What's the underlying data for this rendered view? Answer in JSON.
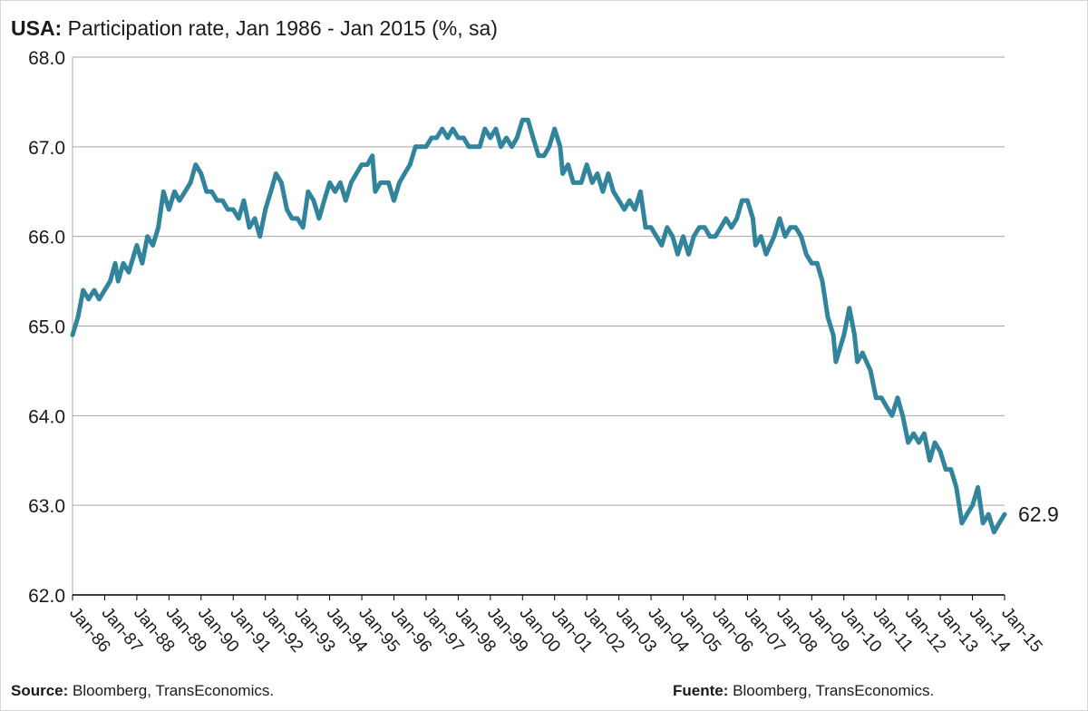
{
  "title": {
    "prefix": "USA:",
    "text": "Participation rate, Jan 1986 - Jan 2015 (%, sa)"
  },
  "footer": {
    "source_label": "Source:",
    "source_text": "Bloomberg, TransEconomics.",
    "fuente_label": "Fuente:",
    "fuente_text": "Bloomberg, TransEconomics."
  },
  "colors": {
    "line": "#31849b",
    "grid": "#a6a6a6",
    "axis": "#000000",
    "text": "#1a1a1a"
  },
  "chart_data": {
    "type": "line",
    "title": "USA: Participation rate, Jan 1986 - Jan 2015 (%, sa)",
    "xlabel": "",
    "ylabel": "",
    "ylim": [
      62.0,
      68.0
    ],
    "yticks": [
      62.0,
      63.0,
      64.0,
      65.0,
      66.0,
      67.0,
      68.0
    ],
    "ytick_labels": [
      "62.0",
      "63.0",
      "64.0",
      "65.0",
      "66.0",
      "67.0",
      "68.0"
    ],
    "xlim": [
      1986.0,
      2015.0
    ],
    "xtick_labels": [
      "Jan-86",
      "Jan-87",
      "Jan-88",
      "Jan-89",
      "Jan-90",
      "Jan-91",
      "Jan-92",
      "Jan-93",
      "Jan-94",
      "Jan-95",
      "Jan-96",
      "Jan-97",
      "Jan-98",
      "Jan-99",
      "Jan-00",
      "Jan-01",
      "Jan-02",
      "Jan-03",
      "Jan-04",
      "Jan-05",
      "Jan-06",
      "Jan-07",
      "Jan-08",
      "Jan-09",
      "Jan-10",
      "Jan-11",
      "Jan-12",
      "Jan-13",
      "Jan-14",
      "Jan-15"
    ],
    "grid": true,
    "last_value_label": "62.9",
    "series": [
      {
        "name": "",
        "points": [
          [
            1986.0,
            64.9
          ],
          [
            1986.17,
            65.1
          ],
          [
            1986.33,
            65.4
          ],
          [
            1986.5,
            65.3
          ],
          [
            1986.67,
            65.4
          ],
          [
            1986.83,
            65.3
          ],
          [
            1987.0,
            65.4
          ],
          [
            1987.17,
            65.5
          ],
          [
            1987.33,
            65.7
          ],
          [
            1987.42,
            65.5
          ],
          [
            1987.58,
            65.7
          ],
          [
            1987.75,
            65.6
          ],
          [
            1988.0,
            65.9
          ],
          [
            1988.17,
            65.7
          ],
          [
            1988.33,
            66.0
          ],
          [
            1988.5,
            65.9
          ],
          [
            1988.67,
            66.1
          ],
          [
            1988.83,
            66.5
          ],
          [
            1989.0,
            66.3
          ],
          [
            1989.17,
            66.5
          ],
          [
            1989.33,
            66.4
          ],
          [
            1989.5,
            66.5
          ],
          [
            1989.67,
            66.6
          ],
          [
            1989.83,
            66.8
          ],
          [
            1990.0,
            66.7
          ],
          [
            1990.17,
            66.5
          ],
          [
            1990.33,
            66.5
          ],
          [
            1990.5,
            66.4
          ],
          [
            1990.67,
            66.4
          ],
          [
            1990.83,
            66.3
          ],
          [
            1991.0,
            66.3
          ],
          [
            1991.17,
            66.2
          ],
          [
            1991.33,
            66.4
          ],
          [
            1991.5,
            66.1
          ],
          [
            1991.67,
            66.2
          ],
          [
            1991.83,
            66.0
          ],
          [
            1992.0,
            66.3
          ],
          [
            1992.17,
            66.5
          ],
          [
            1992.33,
            66.7
          ],
          [
            1992.5,
            66.6
          ],
          [
            1992.67,
            66.3
          ],
          [
            1992.83,
            66.2
          ],
          [
            1993.0,
            66.2
          ],
          [
            1993.17,
            66.1
          ],
          [
            1993.33,
            66.5
          ],
          [
            1993.5,
            66.4
          ],
          [
            1993.67,
            66.2
          ],
          [
            1993.83,
            66.4
          ],
          [
            1994.0,
            66.6
          ],
          [
            1994.17,
            66.5
          ],
          [
            1994.33,
            66.6
          ],
          [
            1994.5,
            66.4
          ],
          [
            1994.67,
            66.6
          ],
          [
            1994.83,
            66.7
          ],
          [
            1995.0,
            66.8
          ],
          [
            1995.17,
            66.8
          ],
          [
            1995.33,
            66.9
          ],
          [
            1995.42,
            66.5
          ],
          [
            1995.58,
            66.6
          ],
          [
            1995.83,
            66.6
          ],
          [
            1996.0,
            66.4
          ],
          [
            1996.17,
            66.6
          ],
          [
            1996.33,
            66.7
          ],
          [
            1996.5,
            66.8
          ],
          [
            1996.67,
            67.0
          ],
          [
            1996.83,
            67.0
          ],
          [
            1997.0,
            67.0
          ],
          [
            1997.17,
            67.1
          ],
          [
            1997.33,
            67.1
          ],
          [
            1997.5,
            67.2
          ],
          [
            1997.67,
            67.1
          ],
          [
            1997.83,
            67.2
          ],
          [
            1998.0,
            67.1
          ],
          [
            1998.17,
            67.1
          ],
          [
            1998.33,
            67.0
          ],
          [
            1998.5,
            67.0
          ],
          [
            1998.67,
            67.0
          ],
          [
            1998.83,
            67.2
          ],
          [
            1999.0,
            67.1
          ],
          [
            1999.17,
            67.2
          ],
          [
            1999.33,
            67.0
          ],
          [
            1999.5,
            67.1
          ],
          [
            1999.67,
            67.0
          ],
          [
            1999.83,
            67.1
          ],
          [
            2000.0,
            67.3
          ],
          [
            2000.17,
            67.3
          ],
          [
            2000.33,
            67.1
          ],
          [
            2000.5,
            66.9
          ],
          [
            2000.67,
            66.9
          ],
          [
            2000.83,
            67.0
          ],
          [
            2001.0,
            67.2
          ],
          [
            2001.17,
            67.0
          ],
          [
            2001.25,
            66.7
          ],
          [
            2001.42,
            66.8
          ],
          [
            2001.58,
            66.6
          ],
          [
            2001.83,
            66.6
          ],
          [
            2002.0,
            66.8
          ],
          [
            2002.17,
            66.6
          ],
          [
            2002.33,
            66.7
          ],
          [
            2002.5,
            66.5
          ],
          [
            2002.67,
            66.7
          ],
          [
            2002.83,
            66.5
          ],
          [
            2003.0,
            66.4
          ],
          [
            2003.17,
            66.3
          ],
          [
            2003.33,
            66.4
          ],
          [
            2003.5,
            66.3
          ],
          [
            2003.67,
            66.5
          ],
          [
            2003.83,
            66.1
          ],
          [
            2004.0,
            66.1
          ],
          [
            2004.17,
            66.0
          ],
          [
            2004.33,
            65.9
          ],
          [
            2004.5,
            66.1
          ],
          [
            2004.67,
            66.0
          ],
          [
            2004.83,
            65.8
          ],
          [
            2005.0,
            66.0
          ],
          [
            2005.17,
            65.8
          ],
          [
            2005.33,
            66.0
          ],
          [
            2005.5,
            66.1
          ],
          [
            2005.67,
            66.1
          ],
          [
            2005.83,
            66.0
          ],
          [
            2006.0,
            66.0
          ],
          [
            2006.17,
            66.1
          ],
          [
            2006.33,
            66.2
          ],
          [
            2006.5,
            66.1
          ],
          [
            2006.67,
            66.2
          ],
          [
            2006.83,
            66.4
          ],
          [
            2007.0,
            66.4
          ],
          [
            2007.17,
            66.2
          ],
          [
            2007.25,
            65.9
          ],
          [
            2007.42,
            66.0
          ],
          [
            2007.58,
            65.8
          ],
          [
            2007.83,
            66.0
          ],
          [
            2008.0,
            66.2
          ],
          [
            2008.17,
            66.0
          ],
          [
            2008.33,
            66.1
          ],
          [
            2008.5,
            66.1
          ],
          [
            2008.67,
            66.0
          ],
          [
            2008.83,
            65.8
          ],
          [
            2009.0,
            65.7
          ],
          [
            2009.17,
            65.7
          ],
          [
            2009.33,
            65.5
          ],
          [
            2009.5,
            65.1
          ],
          [
            2009.67,
            64.9
          ],
          [
            2009.75,
            64.6
          ],
          [
            2010.0,
            64.9
          ],
          [
            2010.17,
            65.2
          ],
          [
            2010.33,
            64.9
          ],
          [
            2010.42,
            64.6
          ],
          [
            2010.58,
            64.7
          ],
          [
            2010.83,
            64.5
          ],
          [
            2011.0,
            64.2
          ],
          [
            2011.17,
            64.2
          ],
          [
            2011.33,
            64.1
          ],
          [
            2011.5,
            64.0
          ],
          [
            2011.67,
            64.2
          ],
          [
            2011.83,
            64.0
          ],
          [
            2012.0,
            63.7
          ],
          [
            2012.17,
            63.8
          ],
          [
            2012.33,
            63.7
          ],
          [
            2012.5,
            63.8
          ],
          [
            2012.67,
            63.5
          ],
          [
            2012.83,
            63.7
          ],
          [
            2013.0,
            63.6
          ],
          [
            2013.17,
            63.4
          ],
          [
            2013.33,
            63.4
          ],
          [
            2013.5,
            63.2
          ],
          [
            2013.67,
            62.8
          ],
          [
            2013.83,
            62.9
          ],
          [
            2014.0,
            63.0
          ],
          [
            2014.17,
            63.2
          ],
          [
            2014.33,
            62.8
          ],
          [
            2014.5,
            62.9
          ],
          [
            2014.67,
            62.7
          ],
          [
            2014.83,
            62.8
          ],
          [
            2015.0,
            62.9
          ]
        ]
      }
    ]
  }
}
